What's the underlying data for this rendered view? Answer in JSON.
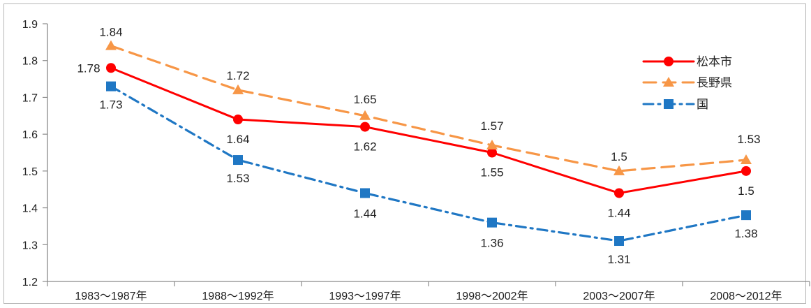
{
  "chart_data": {
    "type": "line",
    "categories": [
      "1983～1987年",
      "1988～1992年",
      "1993～1997年",
      "1998～2002年",
      "2003～2007年",
      "2008～2012年"
    ],
    "ylim": [
      1.2,
      1.9
    ],
    "yticks": [
      "1.2",
      "1.3",
      "1.4",
      "1.5",
      "1.6",
      "1.7",
      "1.8",
      "1.9"
    ],
    "grid": false,
    "legend_position": "top-right",
    "series": [
      {
        "name": "松本市",
        "values": [
          1.78,
          1.64,
          1.62,
          1.55,
          1.44,
          1.5
        ],
        "labels": [
          "1.78",
          "1.64",
          "1.62",
          "1.55",
          "1.44",
          "1.5"
        ],
        "color": "#ff0000",
        "marker": "circle",
        "line_style": "solid"
      },
      {
        "name": "長野県",
        "values": [
          1.84,
          1.72,
          1.65,
          1.57,
          1.5,
          1.53
        ],
        "labels": [
          "1.84",
          "1.72",
          "1.65",
          "1.57",
          "1.5",
          "1.53"
        ],
        "color": "#f79646",
        "marker": "triangle",
        "line_style": "dashed"
      },
      {
        "name": "国",
        "values": [
          1.73,
          1.53,
          1.44,
          1.36,
          1.31,
          1.38
        ],
        "labels": [
          "1.73",
          "1.53",
          "1.44",
          "1.36",
          "1.31",
          "1.38"
        ],
        "color": "#1f77c4",
        "marker": "square",
        "line_style": "dash-dot"
      }
    ]
  }
}
